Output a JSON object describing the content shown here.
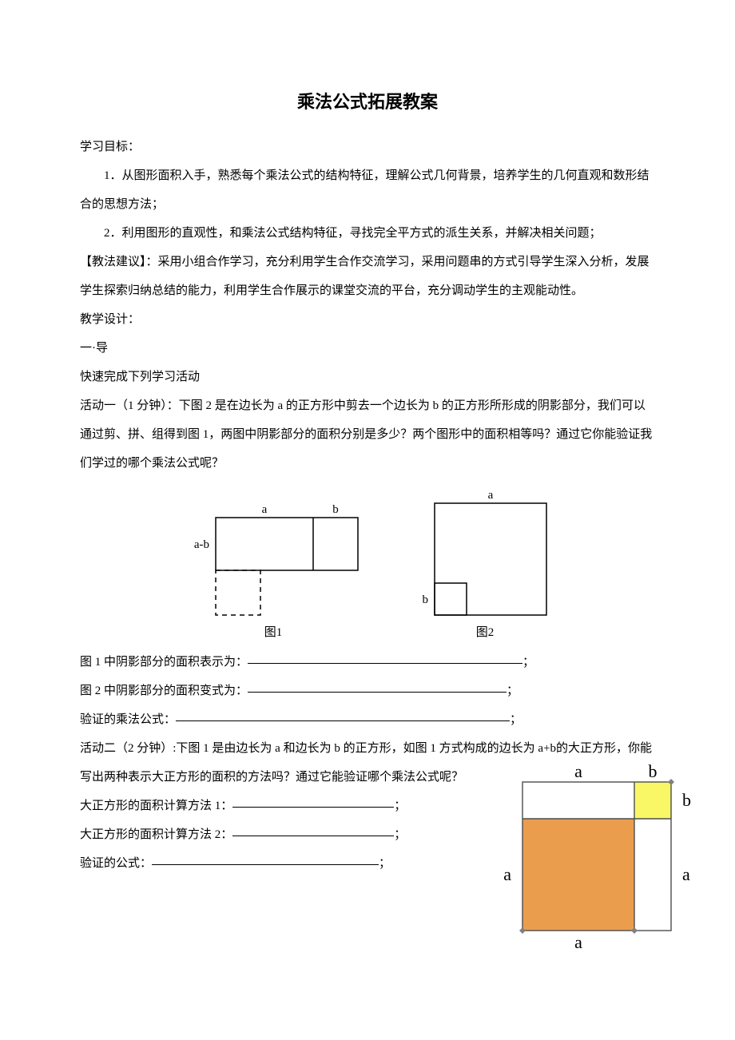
{
  "title": "乘法公式拓展教案",
  "headings": {
    "objectives": "学习目标：",
    "suggestion_label": "【教法建议】：",
    "design": "教学设计：",
    "part_one": "一·导",
    "quick": "快速完成下列学习活动"
  },
  "objectives": {
    "item1": "1．从图形面积入手，熟悉每个乘法公式的结构特征，理解公式几何背景，培养学生的几何直观和数形结合的思想方法；",
    "item2": "2．利用图形的直观性，和乘法公式结构特征，寻找完全平方式的派生关系，并解决相关问题；"
  },
  "suggestion": "采用小组合作学习，充分利用学生合作交流学习，采用问题串的方式引导学生深入分析，发展学生探索归纳总结的能力，利用学生合作展示的课堂交流的平台，充分调动学生的主观能动性。",
  "activity1": {
    "intro": "活动一（1 分钟）：下图 2 是在边长为 a 的正方形中剪去一个边长为 b 的正方形所形成的阴影部分，我们可以通过剪、拼、组得到图 1，两图中阴影部分的面积分别是多少？两个图形中的面积相等吗？通过它你能验证我们学过的哪个乘法公式呢？",
    "caption1": "图1",
    "caption2": "图2",
    "labels": {
      "a": "a",
      "b": "b",
      "amb": "a-b"
    },
    "line1": "图 1 中阴影部分的面积表示为：",
    "line2": "图 2 中阴影部分的面积变式为：",
    "line3": "验证的乘法公式：",
    "blank_widths": {
      "w1": 344,
      "w2": 324,
      "w3": 418
    }
  },
  "activity2": {
    "intro": "活动二（2 分钟）:下图 1 是由边长为 a 和边长为 b 的正方形，如图 1 方式构成的边长为 a+b的大正方形，你能写出两种表示大正方形的面积的方法吗？通过它能验证哪个乘法公式呢？",
    "line1": "大正方形的面积计算方法 1：",
    "line2": "大正方形的面积计算方法 2：",
    "line3": "验证的公式：",
    "blank_widths": {
      "w1": 202,
      "w2": 202,
      "w3": 284
    },
    "labels": {
      "a": "a",
      "b": "b"
    }
  },
  "semicolon_cn": "；",
  "figure1": {
    "box_stroke": "#000000",
    "box_stroke_width": 1.5,
    "a": 122,
    "b": 56,
    "amb": 66,
    "dash": "6,5"
  },
  "figure2": {
    "box_stroke": "#000000",
    "box_stroke_width": 1.5,
    "a": 140,
    "b": 40
  },
  "figure3": {
    "a": 140,
    "b": 46,
    "fill_big": "#eb9d4e",
    "fill_small": "#faf766",
    "fill_white": "#ffffff",
    "stroke": "#4d4d4d",
    "stroke_width": 1.4,
    "corner_fill": "#808080",
    "corner_size": 8,
    "label_fontsize": 22,
    "label_color": "#000000"
  }
}
